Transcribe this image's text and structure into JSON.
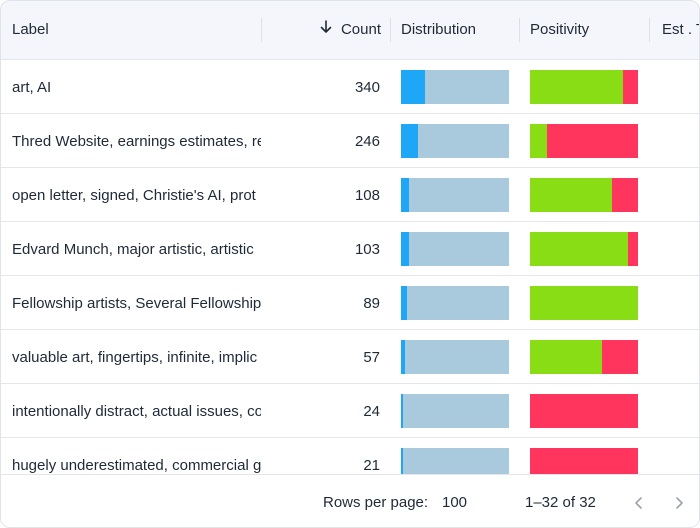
{
  "header": {
    "label": "Label",
    "count": "Count",
    "distribution": "Distribution",
    "positivity": "Positivity",
    "est": "Est . T"
  },
  "colors": {
    "dist_primary": "#1ea7f7",
    "dist_rest": "#a9cadc",
    "positive": "#88dd14",
    "negative": "#ff355e"
  },
  "rows": [
    {
      "label": "art, AI",
      "count": "340",
      "dist": 0.22,
      "pos": 0.86
    },
    {
      "label": "Thred Website, earnings estimates, re",
      "count": "246",
      "dist": 0.16,
      "pos": 0.16
    },
    {
      "label": "open letter, signed, Christie's AI, prot",
      "count": "108",
      "dist": 0.07,
      "pos": 0.76
    },
    {
      "label": "Edvard Munch, major artistic, artistic",
      "count": "103",
      "dist": 0.07,
      "pos": 0.91
    },
    {
      "label": "Fellowship artists, Several Fellowship,",
      "count": "89",
      "dist": 0.06,
      "pos": 1.0
    },
    {
      "label": "valuable art, fingertips, infinite, implic",
      "count": "57",
      "dist": 0.04,
      "pos": 0.67
    },
    {
      "label": "intentionally distract, actual issues, co",
      "count": "24",
      "dist": 0.015,
      "pos": 0.0
    },
    {
      "label": "hugely underestimated, commercial g",
      "count": "21",
      "dist": 0.015,
      "pos": 0.0
    }
  ],
  "footer": {
    "rows_per_page_label": "Rows per page:",
    "rows_per_page_value": "100",
    "range": "1–32 of 32"
  }
}
